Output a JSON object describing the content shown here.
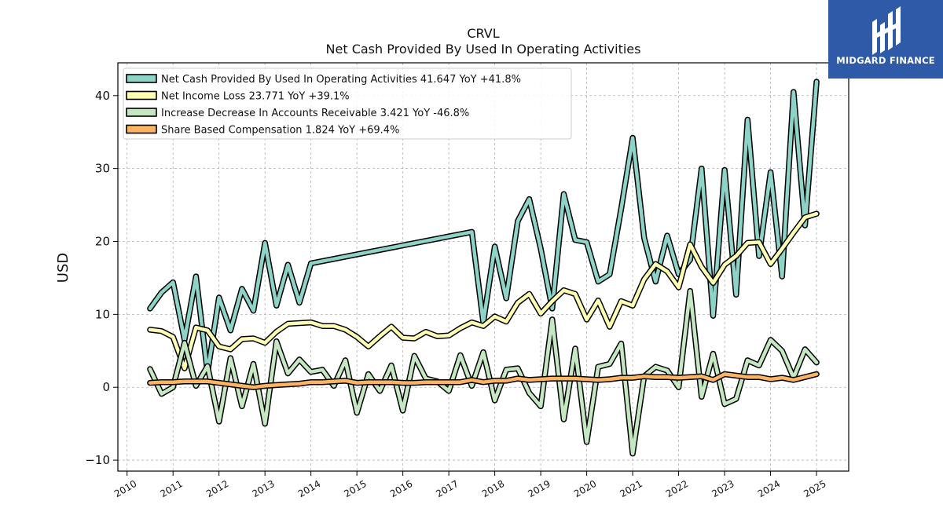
{
  "brand": {
    "name": "MIDGARD FINANCE",
    "logo_icon": "midgard-logo-icon",
    "color": "#2f5aa8"
  },
  "chart_data": {
    "type": "line",
    "title": "CRVL",
    "subtitle": "Net Cash Provided By Used In Operating Activities",
    "ylabel": "USD",
    "xlabel": "",
    "xlim": [
      2009.8,
      2025.7
    ],
    "ylim": [
      -11.5,
      44.5
    ],
    "yticks": [
      -10,
      0,
      10,
      20,
      30,
      40
    ],
    "ytick_labels": [
      "−10",
      "0",
      "10",
      "20",
      "30",
      "40"
    ],
    "xticks": [
      2010,
      2011,
      2012,
      2013,
      2014,
      2015,
      2016,
      2017,
      2018,
      2019,
      2020,
      2021,
      2022,
      2023,
      2024,
      2025
    ],
    "xtick_labels": [
      "2010",
      "2011",
      "2012",
      "2013",
      "2014",
      "2015",
      "2016",
      "2017",
      "2018",
      "2019",
      "2020",
      "2021",
      "2022",
      "2023",
      "2024",
      "2025"
    ],
    "grid": true,
    "legend_position": "top-left",
    "series": [
      {
        "name": "Net Cash Provided By Used In Operating Activities",
        "legend_label": "Net Cash Provided By Used In Operating Activities  41.647 YoY +41.8%",
        "color": "#8dd3c7",
        "points": [
          [
            2010.5,
            10.8
          ],
          [
            2010.75,
            13.0
          ],
          [
            2011.0,
            14.4
          ],
          [
            2011.25,
            6.5
          ],
          [
            2011.5,
            15.2
          ],
          [
            2011.75,
            2.0
          ],
          [
            2012.0,
            12.3
          ],
          [
            2012.25,
            7.8
          ],
          [
            2012.5,
            13.5
          ],
          [
            2012.75,
            10.5
          ],
          [
            2013.0,
            19.8
          ],
          [
            2013.25,
            11.2
          ],
          [
            2013.5,
            16.8
          ],
          [
            2013.75,
            11.6
          ],
          [
            2014.0,
            17.0
          ],
          [
            2017.5,
            21.3
          ],
          [
            2017.75,
            8.9
          ],
          [
            2018.0,
            19.3
          ],
          [
            2018.25,
            12.2
          ],
          [
            2018.5,
            22.8
          ],
          [
            2018.75,
            25.8
          ],
          [
            2019.0,
            19.0
          ],
          [
            2019.25,
            10.8
          ],
          [
            2019.5,
            26.5
          ],
          [
            2019.75,
            20.2
          ],
          [
            2020.0,
            19.9
          ],
          [
            2020.25,
            14.5
          ],
          [
            2020.5,
            15.5
          ],
          [
            2020.75,
            24.5
          ],
          [
            2021.0,
            34.2
          ],
          [
            2021.25,
            20.5
          ],
          [
            2021.5,
            14.5
          ],
          [
            2021.75,
            20.8
          ],
          [
            2022.0,
            15.5
          ],
          [
            2022.25,
            17.5
          ],
          [
            2022.5,
            30.0
          ],
          [
            2022.75,
            9.8
          ],
          [
            2023.0,
            29.8
          ],
          [
            2023.25,
            12.7
          ],
          [
            2023.5,
            36.7
          ],
          [
            2023.75,
            18.0
          ],
          [
            2024.0,
            29.5
          ],
          [
            2024.25,
            15.2
          ],
          [
            2024.5,
            40.5
          ],
          [
            2024.75,
            22.2
          ],
          [
            2025.0,
            41.9
          ]
        ]
      },
      {
        "name": "Net Income Loss",
        "legend_label": "Net Income Loss  23.771 YoY +39.1%",
        "color": "#ffffb3",
        "points": [
          [
            2010.5,
            7.9
          ],
          [
            2010.75,
            7.7
          ],
          [
            2011.0,
            6.9
          ],
          [
            2011.25,
            2.6
          ],
          [
            2011.5,
            8.2
          ],
          [
            2011.75,
            7.8
          ],
          [
            2012.0,
            5.6
          ],
          [
            2012.25,
            5.2
          ],
          [
            2012.5,
            6.6
          ],
          [
            2012.75,
            6.7
          ],
          [
            2013.0,
            6.1
          ],
          [
            2013.25,
            7.6
          ],
          [
            2013.5,
            8.7
          ],
          [
            2013.75,
            8.8
          ],
          [
            2014.0,
            8.9
          ],
          [
            2014.25,
            8.4
          ],
          [
            2014.5,
            8.4
          ],
          [
            2014.75,
            7.9
          ],
          [
            2015.0,
            6.9
          ],
          [
            2015.25,
            5.6
          ],
          [
            2015.5,
            7.0
          ],
          [
            2015.75,
            8.3
          ],
          [
            2016.0,
            6.8
          ],
          [
            2016.25,
            6.7
          ],
          [
            2016.5,
            7.6
          ],
          [
            2016.75,
            7.0
          ],
          [
            2017.0,
            7.1
          ],
          [
            2017.25,
            8.1
          ],
          [
            2017.5,
            8.9
          ],
          [
            2017.75,
            8.4
          ],
          [
            2018.0,
            9.7
          ],
          [
            2018.25,
            9.0
          ],
          [
            2018.5,
            11.6
          ],
          [
            2018.75,
            12.8
          ],
          [
            2019.0,
            10.1
          ],
          [
            2019.25,
            11.8
          ],
          [
            2019.5,
            13.3
          ],
          [
            2019.75,
            12.8
          ],
          [
            2020.0,
            9.3
          ],
          [
            2020.25,
            11.9
          ],
          [
            2020.5,
            8.3
          ],
          [
            2020.75,
            11.8
          ],
          [
            2021.0,
            11.2
          ],
          [
            2021.25,
            14.8
          ],
          [
            2021.5,
            16.9
          ],
          [
            2021.75,
            15.9
          ],
          [
            2022.0,
            13.7
          ],
          [
            2022.25,
            19.6
          ],
          [
            2022.5,
            16.5
          ],
          [
            2022.75,
            14.3
          ],
          [
            2023.0,
            16.8
          ],
          [
            2023.25,
            18.0
          ],
          [
            2023.5,
            19.8
          ],
          [
            2023.75,
            19.9
          ],
          [
            2024.0,
            16.9
          ],
          [
            2024.25,
            19.0
          ],
          [
            2024.5,
            21.2
          ],
          [
            2024.75,
            23.3
          ],
          [
            2025.0,
            23.8
          ]
        ]
      },
      {
        "name": "Increase Decrease In Accounts Receivable",
        "legend_label": "Increase Decrease In Accounts Receivable  3.421 YoY -46.8%",
        "color": "#c5e8c2",
        "points": [
          [
            2010.5,
            2.5
          ],
          [
            2010.75,
            -0.9
          ],
          [
            2011.0,
            0.0
          ],
          [
            2011.25,
            6.1
          ],
          [
            2011.5,
            0.2
          ],
          [
            2011.75,
            2.9
          ],
          [
            2012.0,
            -4.7
          ],
          [
            2012.25,
            4.0
          ],
          [
            2012.5,
            -2.6
          ],
          [
            2012.75,
            3.2
          ],
          [
            2013.0,
            -5.0
          ],
          [
            2013.25,
            6.3
          ],
          [
            2013.5,
            1.9
          ],
          [
            2013.75,
            3.8
          ],
          [
            2014.0,
            2.1
          ],
          [
            2014.25,
            2.4
          ],
          [
            2014.5,
            0.2
          ],
          [
            2014.75,
            3.7
          ],
          [
            2015.0,
            -3.5
          ],
          [
            2015.25,
            1.8
          ],
          [
            2015.5,
            -0.5
          ],
          [
            2015.75,
            3.0
          ],
          [
            2016.0,
            -3.2
          ],
          [
            2016.25,
            4.3
          ],
          [
            2016.5,
            1.2
          ],
          [
            2016.75,
            0.8
          ],
          [
            2017.0,
            -0.5
          ],
          [
            2017.25,
            4.4
          ],
          [
            2017.5,
            0.2
          ],
          [
            2017.75,
            4.8
          ],
          [
            2018.0,
            -1.8
          ],
          [
            2018.25,
            2.4
          ],
          [
            2018.5,
            2.6
          ],
          [
            2018.75,
            -0.8
          ],
          [
            2019.0,
            -2.6
          ],
          [
            2019.25,
            9.3
          ],
          [
            2019.5,
            -4.4
          ],
          [
            2019.75,
            5.3
          ],
          [
            2020.0,
            -7.5
          ],
          [
            2020.25,
            2.8
          ],
          [
            2020.5,
            3.2
          ],
          [
            2020.75,
            6.0
          ],
          [
            2021.0,
            -9.1
          ],
          [
            2021.25,
            1.5
          ],
          [
            2021.5,
            2.8
          ],
          [
            2021.75,
            2.3
          ],
          [
            2022.0,
            0.0
          ],
          [
            2022.25,
            13.2
          ],
          [
            2022.5,
            -1.3
          ],
          [
            2022.75,
            4.6
          ],
          [
            2023.0,
            -2.3
          ],
          [
            2023.25,
            -1.6
          ],
          [
            2023.5,
            3.7
          ],
          [
            2023.75,
            3.0
          ],
          [
            2024.0,
            6.5
          ],
          [
            2024.25,
            5.0
          ],
          [
            2024.5,
            1.3
          ],
          [
            2024.75,
            5.2
          ],
          [
            2025.0,
            3.4
          ]
        ]
      },
      {
        "name": "Share Based Compensation",
        "legend_label": "Share Based Compensation  1.824 YoY +69.4%",
        "color": "#fdb462",
        "points": [
          [
            2010.5,
            0.6
          ],
          [
            2010.75,
            0.7
          ],
          [
            2011.0,
            0.7
          ],
          [
            2011.25,
            0.8
          ],
          [
            2011.5,
            0.8
          ],
          [
            2011.75,
            0.8
          ],
          [
            2012.0,
            0.6
          ],
          [
            2012.25,
            0.4
          ],
          [
            2012.5,
            0.2
          ],
          [
            2012.75,
            0.0
          ],
          [
            2013.0,
            0.2
          ],
          [
            2013.25,
            0.3
          ],
          [
            2013.5,
            0.4
          ],
          [
            2013.75,
            0.5
          ],
          [
            2014.0,
            0.7
          ],
          [
            2014.25,
            0.7
          ],
          [
            2014.5,
            0.8
          ],
          [
            2014.75,
            0.9
          ],
          [
            2015.0,
            0.6
          ],
          [
            2015.25,
            0.7
          ],
          [
            2015.5,
            0.7
          ],
          [
            2015.75,
            0.7
          ],
          [
            2016.0,
            0.6
          ],
          [
            2016.25,
            0.6
          ],
          [
            2016.5,
            0.7
          ],
          [
            2016.75,
            0.7
          ],
          [
            2017.0,
            0.7
          ],
          [
            2017.25,
            0.7
          ],
          [
            2017.5,
            1.0
          ],
          [
            2017.75,
            0.7
          ],
          [
            2018.0,
            0.9
          ],
          [
            2018.25,
            0.9
          ],
          [
            2018.5,
            1.2
          ],
          [
            2018.75,
            1.0
          ],
          [
            2019.0,
            1.1
          ],
          [
            2019.25,
            1.2
          ],
          [
            2019.5,
            1.2
          ],
          [
            2019.75,
            1.2
          ],
          [
            2020.0,
            1.1
          ],
          [
            2020.25,
            1.0
          ],
          [
            2020.5,
            1.1
          ],
          [
            2020.75,
            1.3
          ],
          [
            2021.0,
            1.3
          ],
          [
            2021.25,
            1.5
          ],
          [
            2021.5,
            1.4
          ],
          [
            2021.75,
            1.4
          ],
          [
            2022.0,
            1.3
          ],
          [
            2022.25,
            1.4
          ],
          [
            2022.5,
            1.5
          ],
          [
            2022.75,
            1.0
          ],
          [
            2023.0,
            1.8
          ],
          [
            2023.25,
            1.6
          ],
          [
            2023.5,
            1.4
          ],
          [
            2023.75,
            1.4
          ],
          [
            2024.0,
            1.1
          ],
          [
            2024.25,
            1.3
          ],
          [
            2024.5,
            1.0
          ],
          [
            2024.75,
            1.4
          ],
          [
            2025.0,
            1.8
          ]
        ]
      }
    ]
  }
}
